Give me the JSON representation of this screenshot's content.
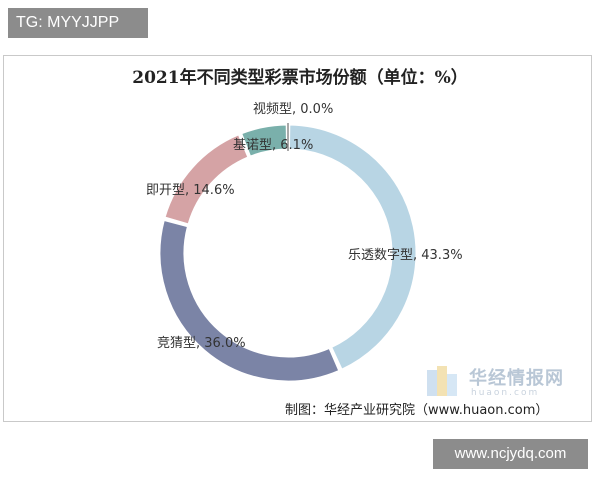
{
  "tags": {
    "top": "TG: MYYJJPP",
    "bottom": "www.ncjydq.com"
  },
  "watermark": {
    "text": "华经情报网",
    "sub": "huaon.com"
  },
  "source": "制图：华经产业研究院（www.huaon.com）",
  "colors": {
    "lottery_digital": "#b8d5e4",
    "quiz": "#7b84a6",
    "instant": "#d5a3a5",
    "keno": "#7ab0ab",
    "video": "#8c8c8c"
  },
  "chart_data": {
    "type": "pie",
    "title": "2021年不同类型彩票市场份额（单位：%）",
    "series": [
      {
        "name": "乐透数字型",
        "value": 43.3,
        "label": "乐透数字型, 43.3%",
        "color": "#b8d5e4"
      },
      {
        "name": "竞猜型",
        "value": 36.0,
        "label": "竞猜型, 36.0%",
        "color": "#7b84a6"
      },
      {
        "name": "即开型",
        "value": 14.6,
        "label": "即开型, 14.6%",
        "color": "#d5a3a5"
      },
      {
        "name": "基诺型",
        "value": 6.1,
        "label": "基诺型, 6.1%",
        "color": "#7ab0ab"
      },
      {
        "name": "视频型",
        "value": 0.0,
        "label": "视频型, 0.0%",
        "color": "#8c8c8c"
      }
    ]
  }
}
